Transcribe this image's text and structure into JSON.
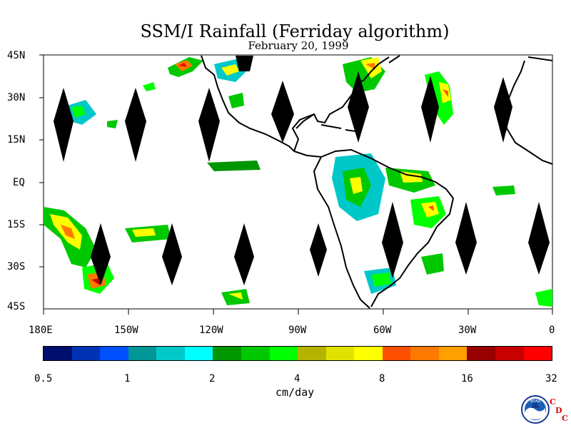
{
  "title": "SSM/I Rainfall (Ferriday algorithm)",
  "subtitle": "February 20, 1999",
  "y_axis_labels": [
    "45N",
    "30N",
    "15N",
    "EQ",
    "15S",
    "30S",
    "45S"
  ],
  "x_axis_labels": [
    "180E",
    "150W",
    "120W",
    "90W",
    "60W",
    "30W",
    "0"
  ],
  "colorbar": {
    "colors": [
      "#000e6e",
      "#0033b4",
      "#0050ff",
      "#009696",
      "#00c8c8",
      "#00ffff",
      "#009600",
      "#00c800",
      "#00ff00",
      "#b4b400",
      "#e1e100",
      "#ffff00",
      "#ff5000",
      "#ff7800",
      "#ffa000",
      "#960000",
      "#c80000",
      "#ff0000"
    ],
    "labels": [
      "0.5",
      "1",
      "2",
      "4",
      "8",
      "16",
      "32"
    ]
  },
  "units": "cm/day",
  "logo": {
    "text": "NOAA",
    "letters": [
      "C",
      "D",
      "C"
    ]
  }
}
